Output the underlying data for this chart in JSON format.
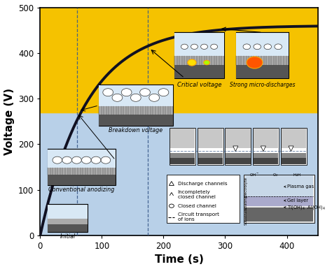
{
  "xlabel": "Time (s)",
  "ylabel": "Voltage (V)",
  "xlim": [
    0,
    450
  ],
  "ylim": [
    0,
    500
  ],
  "xticks": [
    0,
    100,
    200,
    300,
    400
  ],
  "yticks": [
    0,
    100,
    200,
    300,
    400,
    500
  ],
  "bg_yellow": "#F5C200",
  "bg_blue": "#B8D0E8",
  "breakdown_voltage": 270,
  "dashed_x1": 60,
  "dashed_x2": 175,
  "dashed_color": "#3A5A8A",
  "curve_color": "#111122",
  "curve_lw": 2.8,
  "axis_label_fs": 11,
  "tick_fs": 8.5
}
